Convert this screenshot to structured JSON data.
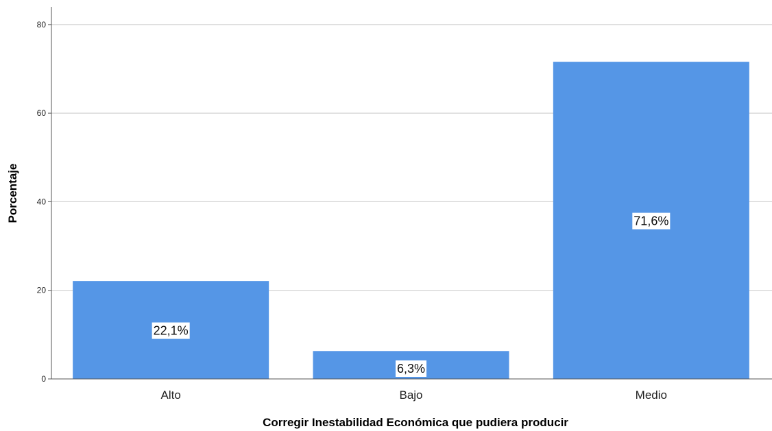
{
  "chart_data": {
    "type": "bar",
    "categories": [
      "Alto",
      "Bajo",
      "Medio"
    ],
    "values": [
      22.1,
      6.3,
      71.6
    ],
    "data_labels": [
      "22,1%",
      "6,3%",
      "71,6%"
    ],
    "xlabel": "Corregir Inestabilidad Económica que pudiera producir",
    "ylabel": "Porcentaje",
    "ylim": [
      0,
      84
    ],
    "yticks": [
      0,
      20,
      40,
      60,
      80
    ],
    "grid": "horizontal",
    "legend": "none",
    "bar_color": "#5596e6",
    "grid_color": "#c8c8c8"
  }
}
